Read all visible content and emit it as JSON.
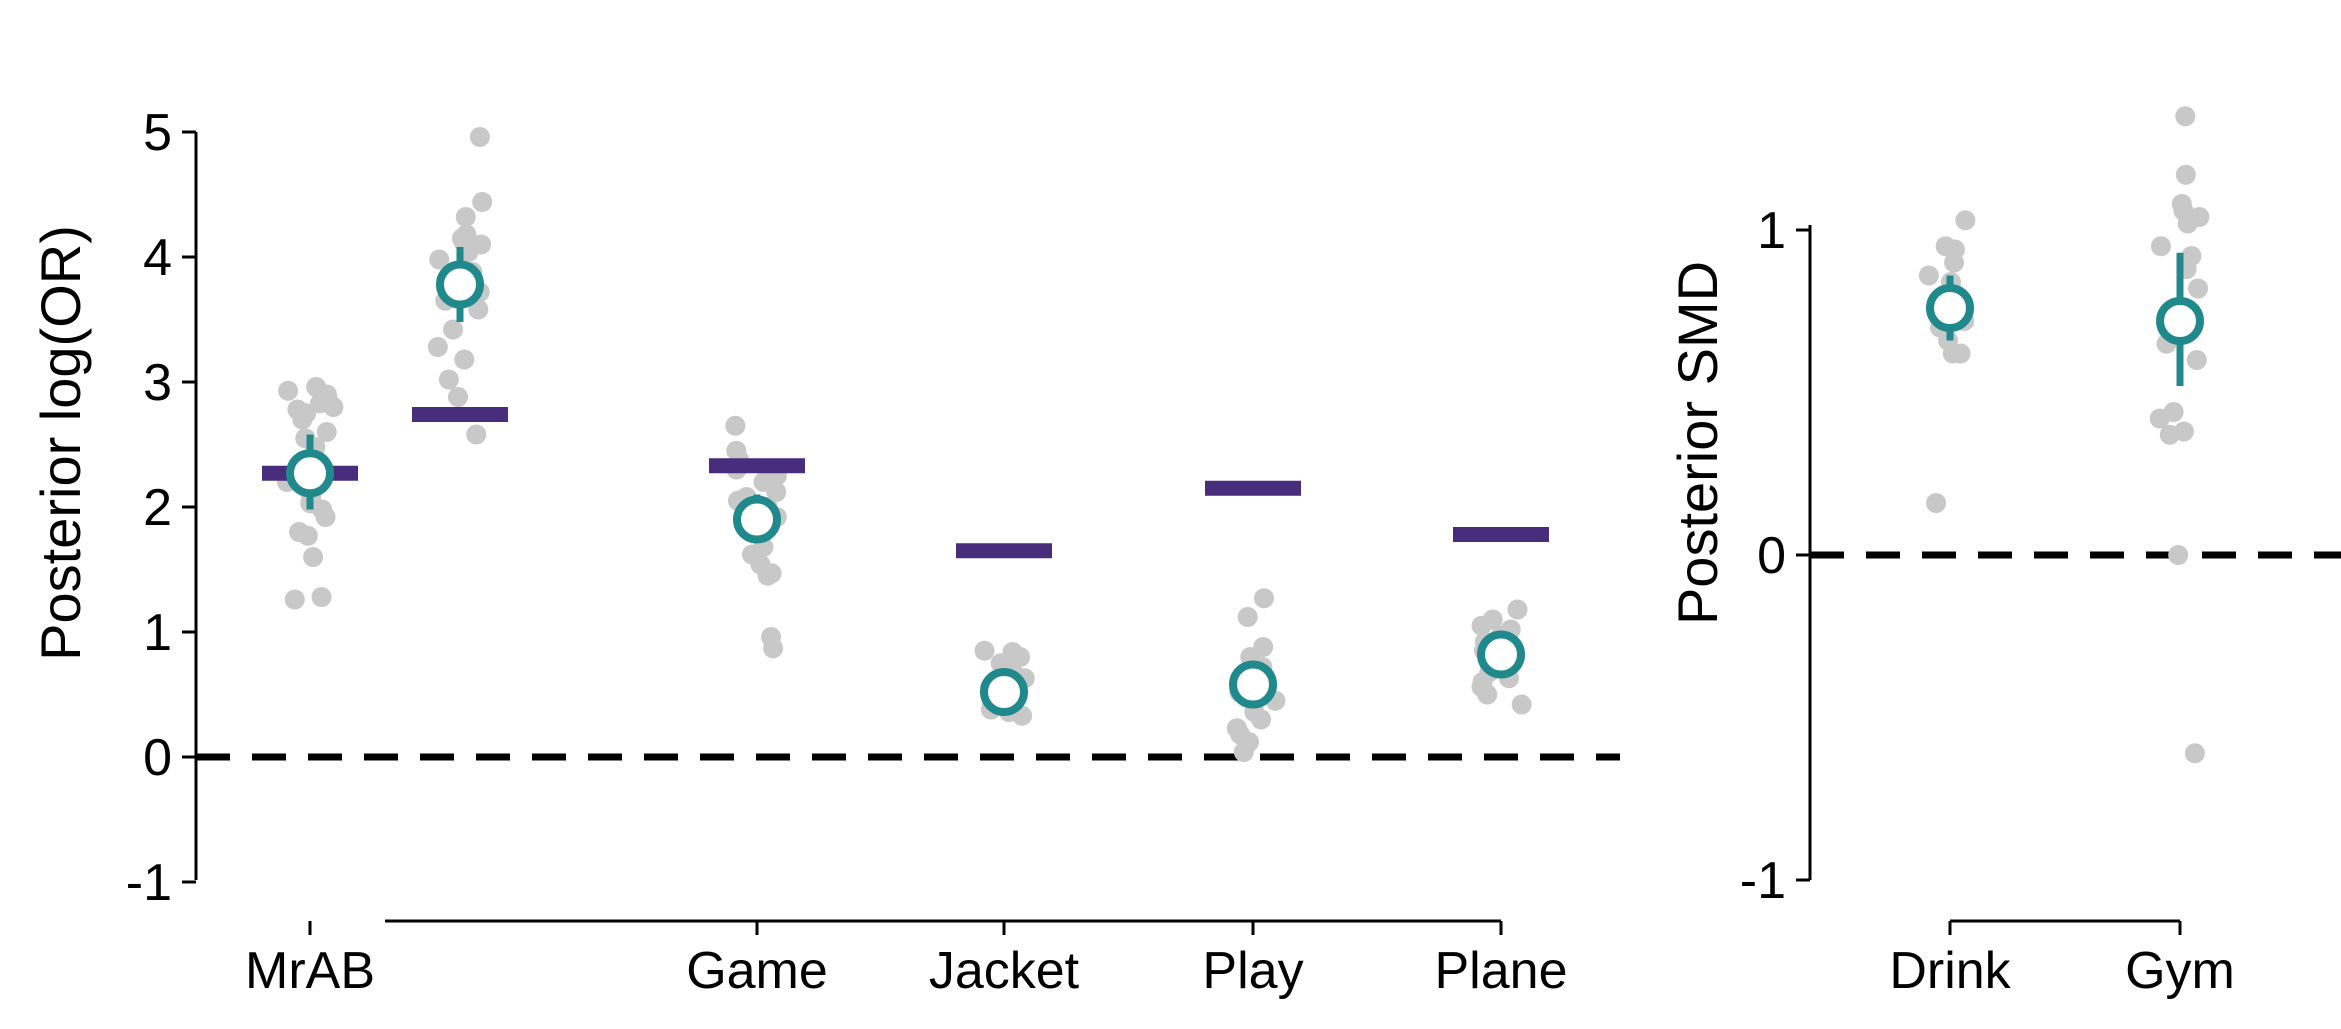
{
  "colors": {
    "individual_points": "#c8c8c8",
    "posterior_mean": "#20898c",
    "original_estimate": "#472d7b",
    "axis": "#000000",
    "zero_line": "#000000"
  },
  "chart_data": [
    {
      "type": "scatter",
      "ylabel": "Posterior log(OR)",
      "ylim": [
        -1,
        5
      ],
      "yticks": [
        -1,
        0,
        1,
        2,
        3,
        4,
        5
      ],
      "ytick_labels": [
        "-1",
        "0",
        "1",
        "2",
        "3",
        "4",
        "5"
      ],
      "reference_line": 0,
      "grid": false,
      "categories": [
        "MrAB",
        "Game",
        "Jacket",
        "Play",
        "Plane"
      ],
      "original_estimates": [
        2.27,
        2.33,
        1.65,
        2.15,
        1.78
      ],
      "extra_original_estimate": {
        "category": "MrAB",
        "position": "right",
        "value": 2.74
      },
      "extra_posterior_mean": {
        "category": "MrAB",
        "position": "right",
        "mean": 3.78,
        "ci": [
          3.48,
          4.08
        ]
      },
      "posterior_means": [
        2.27,
        1.9,
        0.52,
        0.58,
        0.82
      ],
      "posterior_ci": [
        [
          1.98,
          2.58
        ],
        [
          1.72,
          2.1
        ],
        [
          0.4,
          0.64
        ],
        [
          0.45,
          0.7
        ],
        [
          0.7,
          0.95
        ]
      ],
      "individual_points": [
        [
          1.26,
          1.28,
          1.6,
          1.77,
          1.8,
          1.92,
          1.98,
          2.03,
          2.07,
          2.1,
          2.2,
          2.35,
          2.48,
          2.55,
          2.6,
          2.7,
          2.75,
          2.78,
          2.8,
          2.83,
          2.87,
          2.9,
          2.93,
          2.96
        ],
        [
          2.58,
          2.88,
          3.02,
          3.18,
          3.28,
          3.42,
          3.58,
          3.65,
          3.72,
          3.8,
          3.88,
          3.98,
          4.04,
          4.1,
          4.12,
          4.15,
          4.18,
          4.32,
          4.44,
          4.96
        ],
        [
          0.87,
          0.96,
          1.45,
          1.47,
          1.54,
          1.62,
          1.68,
          1.85,
          1.92,
          2.0,
          2.05,
          2.08,
          2.12,
          2.2,
          2.25,
          2.3,
          2.38,
          2.45,
          2.65
        ],
        [
          0.33,
          0.36,
          0.38,
          0.4,
          0.43,
          0.46,
          0.5,
          0.53,
          0.56,
          0.6,
          0.63,
          0.66,
          0.7,
          0.75,
          0.8,
          0.84,
          0.85
        ],
        [
          0.04,
          0.12,
          0.18,
          0.23,
          0.3,
          0.36,
          0.45,
          0.52,
          0.58,
          0.65,
          0.72,
          0.8,
          0.88,
          1.12,
          1.27
        ],
        [
          0.42,
          0.5,
          0.56,
          0.6,
          0.63,
          0.68,
          0.72,
          0.76,
          0.8,
          0.85,
          0.88,
          0.92,
          0.97,
          1.02,
          1.05,
          1.1,
          1.18
        ]
      ]
    },
    {
      "type": "scatter",
      "ylabel": "Posterior SMD",
      "ylim": [
        -1,
        1.2
      ],
      "yticks": [
        -1,
        0,
        1
      ],
      "ytick_labels": [
        "-1",
        "0",
        "1"
      ],
      "reference_line": 0,
      "grid": false,
      "categories": [
        "Drink",
        "Gym"
      ],
      "posterior_means": [
        0.76,
        0.72
      ],
      "posterior_ci": [
        [
          0.66,
          0.86
        ],
        [
          0.52,
          0.93
        ]
      ],
      "individual_points": [
        [
          0.16,
          0.62,
          0.62,
          0.66,
          0.7,
          0.72,
          0.75,
          0.8,
          0.82,
          0.84,
          0.86,
          0.9,
          0.94,
          0.95,
          1.03
        ],
        [
          -0.61,
          0.0,
          0.37,
          0.38,
          0.42,
          0.44,
          0.6,
          0.65,
          0.82,
          0.88,
          0.92,
          0.95,
          1.02,
          1.04,
          1.06,
          1.08,
          1.17,
          1.35
        ]
      ]
    }
  ]
}
